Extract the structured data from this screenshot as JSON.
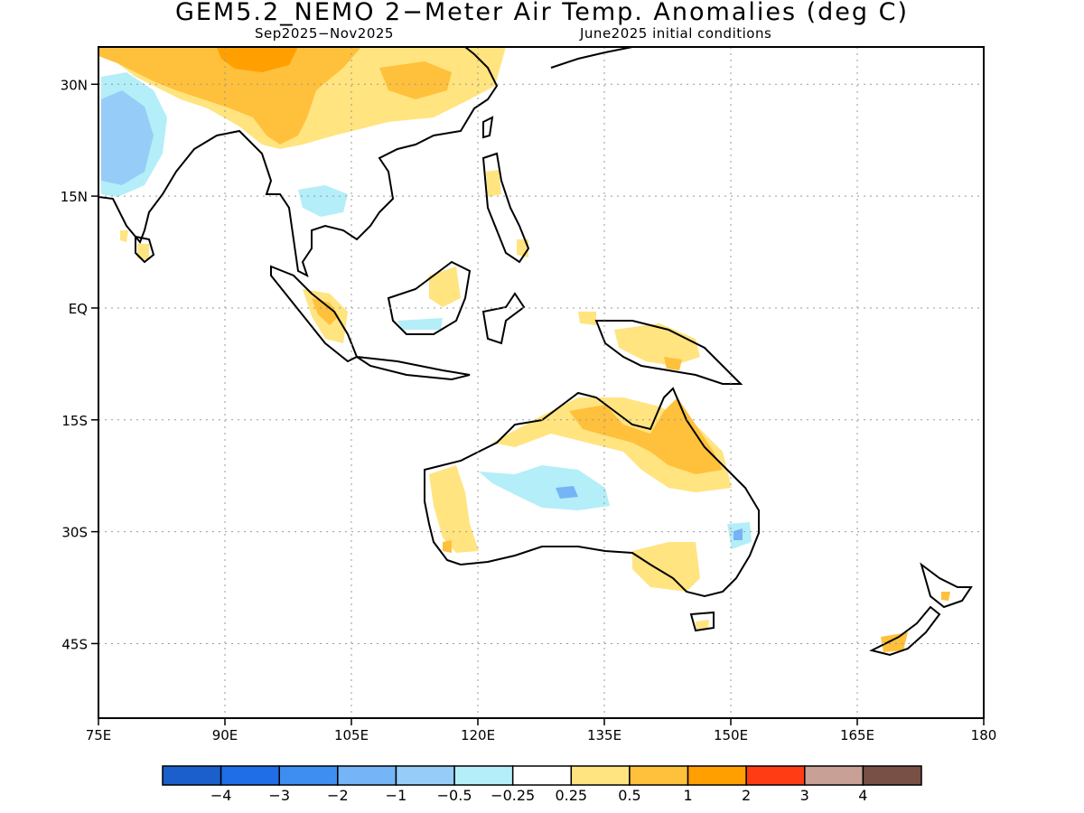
{
  "header": {
    "title": "GEM5.2_NEMO 2−Meter Air Temp. Anomalies (deg C)",
    "period": "Sep2025−Nov2025",
    "init": "June2025 initial conditions"
  },
  "map": {
    "lon_range": [
      75,
      180
    ],
    "lat_range": [
      -55,
      35
    ],
    "lat_ticks": [
      {
        "value": 30,
        "label": "30N"
      },
      {
        "value": 15,
        "label": "15N"
      },
      {
        "value": 0,
        "label": "EQ"
      },
      {
        "value": -15,
        "label": "15S"
      },
      {
        "value": -30,
        "label": "30S"
      },
      {
        "value": -45,
        "label": "45S"
      }
    ],
    "lon_ticks": [
      {
        "value": 75,
        "label": "75E"
      },
      {
        "value": 90,
        "label": "90E"
      },
      {
        "value": 105,
        "label": "105E"
      },
      {
        "value": 120,
        "label": "120E"
      },
      {
        "value": 135,
        "label": "135E"
      },
      {
        "value": 150,
        "label": "150E"
      },
      {
        "value": 165,
        "label": "165E"
      },
      {
        "value": 180,
        "label": "180"
      }
    ]
  },
  "colorbar": {
    "colors": [
      "#1a5fcc",
      "#1f6ee8",
      "#3d8ef0",
      "#74b4f7",
      "#95cdf8",
      "#b4eef8",
      "#ffffff",
      "#ffe480",
      "#ffc03c",
      "#ff9f00",
      "#ff3c14",
      "#c8a096",
      "#785046"
    ],
    "labels": [
      "−4",
      "−3",
      "−2",
      "−1",
      "−0.5",
      "−0.25",
      "0.25",
      "0.5",
      "1",
      "2",
      "3",
      "4"
    ]
  }
}
